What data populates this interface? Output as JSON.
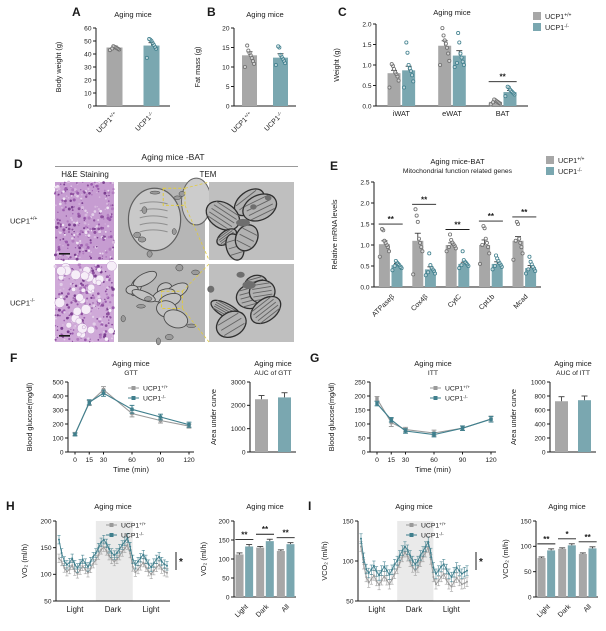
{
  "colors": {
    "text": "#1b1b1b",
    "bar_gray": "#a7a7a7",
    "bar_teal": "#7aa7b0",
    "line_gray": "#9a9a9a",
    "line_teal": "#3f7f8d",
    "pt_gray": "#6f6f6f",
    "pt_teal": "#41808e",
    "band": "#eaeaea",
    "highlight": "#e0cb3f",
    "err": "#3d3d3d",
    "hne_wt_bg": "#c69cd1",
    "hne_ko_bg": "#cfa9d8",
    "tem_bg": "#b6b6b6"
  },
  "panel_labels": {
    "A": "A",
    "B": "B",
    "C": "C",
    "D": "D",
    "E": "E",
    "F": "F",
    "G": "G",
    "H": "H",
    "I": "I"
  },
  "panelD": {
    "header": "Aging mice -BAT",
    "col_labels": [
      "H&E Staining",
      "TEM"
    ],
    "row_labels": [
      "UCP1^+/+",
      "UCP1^-/-"
    ]
  },
  "chart_data": [
    {
      "id": "A",
      "type": "bar",
      "title": [
        "Aging mice"
      ],
      "ylabel": "Body weight (g)",
      "ylim": [
        0,
        60
      ],
      "yticks": [
        "0",
        "10",
        "20",
        "30",
        "40",
        "50",
        "60"
      ],
      "bars": [
        {
          "label": "UCP1^+/+",
          "color": "gray",
          "value": 45,
          "error": 1.2,
          "points": [
            43,
            43.5,
            44,
            44.5,
            45,
            45.5,
            46,
            44.2
          ]
        },
        {
          "label": "UCP1^-/-",
          "color": "teal",
          "value": 46.5,
          "error": 2.2,
          "points": [
            37,
            44,
            45.5,
            47,
            48.5,
            50,
            51,
            51.5
          ]
        }
      ]
    },
    {
      "id": "B",
      "type": "bar",
      "title": [
        "Aging mice"
      ],
      "ylabel": "Fat mass (g)",
      "ylim": [
        0,
        20
      ],
      "yticks": [
        "0",
        "5",
        "10",
        "15",
        "20"
      ],
      "bars": [
        {
          "label": "UCP1^+/+",
          "color": "gray",
          "value": 13,
          "error": 0.9,
          "points": [
            10,
            10.8,
            11.5,
            12.3,
            13,
            13.6,
            14.2,
            15.5
          ]
        },
        {
          "label": "UCP1^-/-",
          "color": "teal",
          "value": 12.4,
          "error": 1.0,
          "points": [
            10.5,
            11,
            11.6,
            12.1,
            12.6,
            13.1,
            15,
            15.3
          ]
        }
      ]
    },
    {
      "id": "C",
      "type": "bar-grouped",
      "title": [
        "Aging mice"
      ],
      "ylabel": "Weight (g)",
      "ylim": [
        0,
        2
      ],
      "yticks": [
        "0.0",
        "0.5",
        "1.0",
        "1.5",
        "2.0"
      ],
      "categories": [
        "iWAT",
        "eWAT",
        "BAT"
      ],
      "rot": false,
      "legend_pos": [
        205,
        8
      ],
      "series": [
        {
          "name": "UCP1^+/+",
          "color": "gray",
          "values": [
            0.8,
            1.47,
            0.1
          ],
          "errors": [
            0.07,
            0.12,
            0.02
          ],
          "points": [
            [
              0.45,
              0.62,
              0.72,
              0.78,
              0.82,
              0.9,
              0.98,
              1.02
            ],
            [
              1.0,
              1.1,
              1.28,
              1.42,
              1.52,
              1.6,
              1.72,
              1.9
            ],
            [
              0.04,
              0.06,
              0.08,
              0.1,
              0.12,
              0.14,
              0.16,
              0.09
            ]
          ]
        },
        {
          "name": "UCP1^-/-",
          "color": "teal",
          "values": [
            0.87,
            1.23,
            0.34
          ],
          "errors": [
            0.1,
            0.12,
            0.04
          ],
          "points": [
            [
              0.45,
              0.6,
              0.75,
              0.85,
              0.92,
              1.0,
              1.3,
              1.55
            ],
            [
              0.95,
              1.0,
              1.08,
              1.18,
              1.28,
              1.55,
              1.78,
              1.05
            ],
            [
              0.24,
              0.28,
              0.31,
              0.34,
              0.37,
              0.4,
              0.45,
              0.47
            ]
          ]
        }
      ],
      "sig": [
        null,
        null,
        "**"
      ]
    },
    {
      "id": "E",
      "type": "bar-grouped",
      "title": [
        "Aging mice-BAT",
        "Mitochondrial function related genes"
      ],
      "ylabel": "Relative mRNA levels",
      "ylim": [
        0,
        2.5
      ],
      "yticks": [
        "0.0",
        "0.5",
        "1.0",
        "1.5",
        "2.0",
        "2.5"
      ],
      "categories": [
        "ATPaseβ",
        "Cox4β",
        "CytC",
        "Cpt1b",
        "Mcad"
      ],
      "rot": true,
      "legend_pos": [
        220,
        4
      ],
      "series": [
        {
          "name": "UCP1^+/+",
          "color": "gray",
          "values": [
            1.02,
            1.1,
            1.0,
            1.0,
            1.1
          ],
          "errors": [
            0.08,
            0.18,
            0.05,
            0.12,
            0.1
          ],
          "points": [
            [
              0.72,
              0.85,
              0.95,
              1.0,
              1.05,
              1.1,
              1.35,
              1.38
            ],
            [
              0.3,
              0.85,
              0.95,
              1.05,
              1.15,
              1.55,
              1.7,
              1.85
            ],
            [
              0.85,
              0.92,
              0.98,
              1.02,
              1.06,
              1.12,
              1.25,
              0.95
            ],
            [
              0.55,
              0.8,
              0.95,
              1.05,
              1.15,
              1.4,
              1.45,
              1.0
            ],
            [
              0.65,
              0.8,
              0.95,
              1.05,
              1.15,
              1.5,
              1.55,
              1.1
            ]
          ]
        },
        {
          "name": "UCP1^-/-",
          "color": "teal",
          "values": [
            0.52,
            0.42,
            0.55,
            0.55,
            0.45
          ],
          "errors": [
            0.04,
            0.06,
            0.04,
            0.05,
            0.06
          ],
          "points": [
            [
              0.4,
              0.45,
              0.48,
              0.52,
              0.55,
              0.58,
              0.62,
              0.5
            ],
            [
              0.28,
              0.32,
              0.38,
              0.42,
              0.46,
              0.52,
              0.8,
              0.35
            ],
            [
              0.45,
              0.5,
              0.54,
              0.57,
              0.6,
              0.64,
              0.85,
              0.52
            ],
            [
              0.42,
              0.48,
              0.53,
              0.57,
              0.62,
              0.68,
              0.75,
              0.5
            ],
            [
              0.32,
              0.38,
              0.44,
              0.48,
              0.54,
              0.6,
              0.72,
              0.42
            ]
          ]
        }
      ],
      "sig": [
        "**",
        "**",
        "**",
        "**",
        "**"
      ]
    },
    {
      "id": "F1",
      "type": "line",
      "title": [
        "Aging mice",
        "GTT"
      ],
      "ylabel": "Blood glucose(mg/dl)",
      "xlabel": "Time (min)",
      "ylim": [
        0,
        500
      ],
      "yticks": [
        "0",
        "100",
        "200",
        "300",
        "400",
        "500"
      ],
      "x": [
        0,
        15,
        30,
        60,
        90,
        120
      ],
      "series": [
        {
          "name": "UCP1^+/+",
          "color": "gray",
          "values": [
            130,
            350,
            445,
            275,
            225,
            185
          ],
          "errors": [
            10,
            18,
            22,
            24,
            18,
            14
          ]
        },
        {
          "name": "UCP1^-/-",
          "color": "teal",
          "values": [
            125,
            355,
            420,
            305,
            250,
            195
          ],
          "errors": [
            10,
            18,
            22,
            28,
            20,
            18
          ]
        }
      ]
    },
    {
      "id": "F2",
      "type": "bar",
      "title": [
        "Aging mice",
        "AUC of GTT"
      ],
      "ylabel": "Area under curve",
      "ylim": [
        0,
        3000
      ],
      "yticks": [
        "0",
        "1000",
        "2000",
        "3000"
      ],
      "bars": [
        {
          "label": "",
          "color": "gray",
          "value": 2260,
          "error": 160
        },
        {
          "label": "",
          "color": "teal",
          "value": 2340,
          "error": 200
        }
      ]
    },
    {
      "id": "G1",
      "type": "line",
      "title": [
        "Aging mice",
        "ITT"
      ],
      "ylabel": "Blood glucose(mg/dl)",
      "xlabel": "Time (min)",
      "ylim": [
        0,
        250
      ],
      "yticks": [
        "0",
        "50",
        "100",
        "150",
        "200",
        "250"
      ],
      "x": [
        0,
        15,
        30,
        60,
        90,
        120
      ],
      "series": [
        {
          "name": "UCP1^+/+",
          "color": "gray",
          "values": [
            190,
            105,
            80,
            68,
            85,
            118
          ],
          "errors": [
            8,
            14,
            8,
            10,
            8,
            10
          ]
        },
        {
          "name": "UCP1^-/-",
          "color": "teal",
          "values": [
            173,
            115,
            75,
            62,
            85,
            117
          ],
          "errors": [
            8,
            8,
            8,
            8,
            8,
            10
          ]
        }
      ]
    },
    {
      "id": "G2",
      "type": "bar",
      "title": [
        "Aging mice",
        "AUC of ITT"
      ],
      "ylabel": "Area under curve",
      "ylim": [
        0,
        1000
      ],
      "yticks": [
        "0",
        "200",
        "400",
        "600",
        "800",
        "1000"
      ],
      "bars": [
        {
          "label": "",
          "color": "gray",
          "value": 725,
          "error": 65
        },
        {
          "label": "",
          "color": "teal",
          "value": 740,
          "error": 60
        }
      ]
    },
    {
      "id": "H1",
      "type": "timeseries",
      "title": [
        "Aging mice"
      ],
      "ylabel": "VO₂ (ml/h)",
      "ylim": [
        50,
        200
      ],
      "yticks": [
        "50",
        "100",
        "150",
        "200"
      ],
      "sections": [
        "Light",
        "Dark",
        "Light"
      ],
      "band": [
        14,
        28
      ],
      "annotation": "*",
      "series": [
        {
          "name": "UCP1^+/+",
          "color": "gray",
          "err": 8,
          "values": [
            130,
            124,
            112,
            105,
            109,
            117,
            106,
            101,
            108,
            115,
            109,
            103,
            111,
            120,
            127,
            136,
            146,
            151,
            144,
            135,
            128,
            124,
            128,
            135,
            142,
            149,
            155,
            139,
            114,
            104,
            109,
            116,
            122,
            113,
            105,
            100,
            107,
            113,
            118,
            110,
            105,
            103
          ]
        },
        {
          "name": "UCP1^-/-",
          "color": "teal",
          "err": 8,
          "values": [
            165,
            140,
            125,
            118,
            122,
            130,
            118,
            112,
            120,
            128,
            121,
            114,
            124,
            133,
            140,
            150,
            160,
            165,
            158,
            148,
            140,
            136,
            140,
            148,
            155,
            162,
            168,
            152,
            128,
            118,
            124,
            131,
            137,
            128,
            119,
            113,
            121,
            128,
            133,
            124,
            119,
            116
          ]
        }
      ]
    },
    {
      "id": "H2",
      "type": "bar-grouped",
      "title": [
        "Aging mice"
      ],
      "ylabel": "VO₂ (ml/h)",
      "ylim": [
        0,
        200
      ],
      "yticks": [
        "0",
        "50",
        "100",
        "150",
        "200"
      ],
      "categories": [
        "Light",
        "Dark",
        "All"
      ],
      "rot": true,
      "series": [
        {
          "name": "UCP1^+/+",
          "color": "gray",
          "values": [
            112,
            130,
            121
          ],
          "errors": [
            4,
            3,
            3
          ]
        },
        {
          "name": "UCP1^-/-",
          "color": "teal",
          "values": [
            133,
            147,
            139
          ],
          "errors": [
            5,
            5,
            4
          ]
        }
      ],
      "sig": [
        "**",
        "**",
        "**"
      ]
    },
    {
      "id": "I1",
      "type": "timeseries",
      "title": [
        "Aging mice"
      ],
      "ylabel": "VCO₂ (ml/h)",
      "ylim": [
        50,
        150
      ],
      "yticks": [
        "50",
        "100",
        "150"
      ],
      "sections": [
        "Light",
        "Dark",
        "Light"
      ],
      "band": [
        14,
        28
      ],
      "annotation": "*",
      "series": [
        {
          "name": "UCP1^+/+",
          "color": "gray",
          "err": 6,
          "values": [
            118,
            96,
            80,
            73,
            77,
            82,
            75,
            70,
            76,
            81,
            76,
            71,
            77,
            84,
            90,
            98,
            105,
            111,
            106,
            99,
            92,
            88,
            92,
            99,
            105,
            111,
            117,
            102,
            80,
            71,
            75,
            80,
            84,
            77,
            71,
            68,
            74,
            79,
            75,
            71,
            72,
            74
          ]
        },
        {
          "name": "UCP1^-/-",
          "color": "teal",
          "err": 6,
          "values": [
            128,
            104,
            90,
            85,
            89,
            94,
            87,
            82,
            88,
            93,
            88,
            83,
            89,
            96,
            100,
            107,
            113,
            118,
            114,
            107,
            100,
            96,
            100,
            107,
            112,
            118,
            124,
            110,
            92,
            84,
            88,
            93,
            96,
            90,
            84,
            80,
            86,
            92,
            88,
            84,
            86,
            88
          ]
        }
      ]
    },
    {
      "id": "I2",
      "type": "bar-grouped",
      "title": [
        "Aging mice"
      ],
      "ylabel": "VCO₂ (ml/h)",
      "ylim": [
        0,
        150
      ],
      "yticks": [
        "0",
        "50",
        "100",
        "150"
      ],
      "categories": [
        "Light",
        "Dark",
        "All"
      ],
      "rot": true,
      "series": [
        {
          "name": "UCP1^+/+",
          "color": "gray",
          "values": [
            77,
            95,
            85
          ],
          "errors": [
            2,
            2,
            2
          ]
        },
        {
          "name": "UCP1^-/-",
          "color": "teal",
          "values": [
            92,
            102,
            96
          ],
          "errors": [
            3,
            3,
            3
          ]
        }
      ],
      "sig": [
        "**",
        "*",
        "**"
      ]
    }
  ]
}
